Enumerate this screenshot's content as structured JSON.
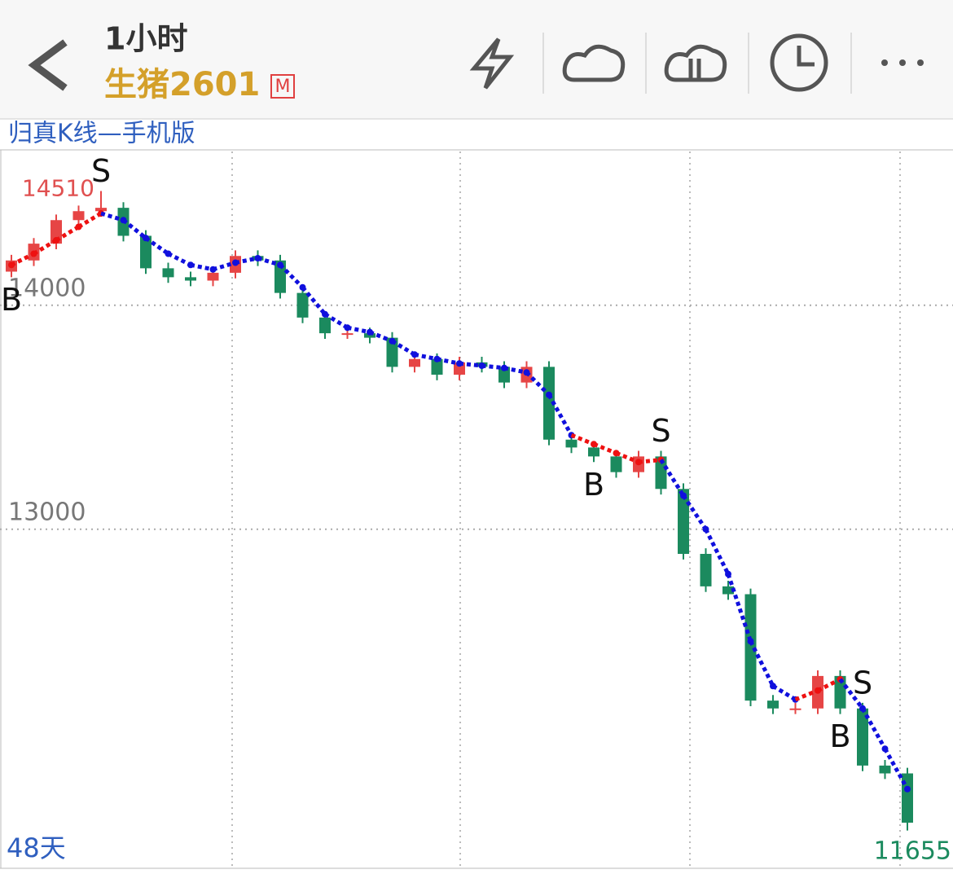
{
  "header": {
    "period": "1小时",
    "symbol": "生猪2601",
    "badge": "M"
  },
  "subheader": "归真K线—手机版",
  "footer_left": "48天",
  "chart_data": {
    "type": "candlestick",
    "open": [
      14150,
      14200,
      14275,
      14380,
      14420,
      14435,
      14310,
      14165,
      14125,
      14110,
      14145,
      14220,
      14200,
      14055,
      13945,
      13875,
      13875,
      13855,
      13725,
      13760,
      13690,
      13745,
      13725,
      13655,
      13725,
      13400,
      13365,
      13325,
      13255,
      13325,
      13180,
      12890,
      12745,
      12710,
      12235,
      12200,
      12200,
      12345,
      12200,
      11945,
      11910
    ],
    "high": [
      14225,
      14300,
      14405,
      14445,
      14510,
      14460,
      14335,
      14190,
      14150,
      14170,
      14245,
      14245,
      14225,
      14080,
      13970,
      13900,
      13900,
      13880,
      13785,
      13785,
      13770,
      13770,
      13750,
      13750,
      13750,
      13425,
      13390,
      13350,
      13350,
      13350,
      13205,
      12915,
      12770,
      12735,
      12260,
      12225,
      12370,
      12370,
      12225,
      11970,
      11935
    ],
    "low": [
      14125,
      14175,
      14250,
      14355,
      14395,
      14285,
      14140,
      14100,
      14085,
      14085,
      14120,
      14175,
      14030,
      13920,
      13850,
      13850,
      13830,
      13700,
      13700,
      13665,
      13665,
      13700,
      13630,
      13630,
      13375,
      13340,
      13300,
      13230,
      13230,
      13155,
      12865,
      12720,
      12685,
      12210,
      12175,
      12175,
      12175,
      12175,
      11920,
      11885,
      11655
    ],
    "close": [
      14200,
      14275,
      14380,
      14420,
      14435,
      14310,
      14165,
      14125,
      14110,
      14145,
      14220,
      14200,
      14055,
      13945,
      13875,
      13875,
      13855,
      13725,
      13760,
      13690,
      13745,
      13725,
      13655,
      13725,
      13400,
      13365,
      13325,
      13255,
      13325,
      13180,
      12890,
      12745,
      12710,
      12235,
      12200,
      12200,
      12345,
      12200,
      11945,
      11910,
      11690
    ],
    "trend": [
      14180,
      14230,
      14290,
      14350,
      14410,
      14380,
      14300,
      14230,
      14180,
      14160,
      14190,
      14210,
      14180,
      14080,
      13960,
      13900,
      13880,
      13840,
      13780,
      13760,
      13740,
      13730,
      13720,
      13700,
      13600,
      13420,
      13380,
      13340,
      13300,
      13310,
      13150,
      13000,
      12800,
      12500,
      12300,
      12240,
      12280,
      12330,
      12200,
      12020,
      11840
    ],
    "trend_colors": [
      "#ee1111",
      "#ee1111",
      "#ee1111",
      "#ee1111",
      "#ee1111",
      "#1010dd",
      "#1010dd",
      "#1010dd",
      "#1010dd",
      "#1010dd",
      "#1010dd",
      "#1010dd",
      "#1010dd",
      "#1010dd",
      "#1010dd",
      "#1010dd",
      "#1010dd",
      "#1010dd",
      "#1010dd",
      "#1010dd",
      "#1010dd",
      "#1010dd",
      "#1010dd",
      "#1010dd",
      "#1010dd",
      "#1010dd",
      "#ee1111",
      "#ee1111",
      "#ee1111",
      "#ee1111",
      "#1010dd",
      "#1010dd",
      "#1010dd",
      "#1010dd",
      "#1010dd",
      "#1010dd",
      "#ee1111",
      "#ee1111",
      "#1010dd",
      "#1010dd",
      "#1010dd"
    ],
    "signals": [
      "B",
      null,
      null,
      null,
      "S",
      null,
      null,
      null,
      null,
      null,
      null,
      null,
      null,
      null,
      null,
      null,
      null,
      null,
      null,
      null,
      null,
      null,
      null,
      null,
      null,
      null,
      "B",
      null,
      null,
      "S",
      null,
      null,
      null,
      null,
      null,
      null,
      null,
      "B",
      "S",
      null,
      null
    ],
    "up_color": "#e64545",
    "down_color": "#1b8a5e",
    "high_label": 14510,
    "low_label": 11655,
    "ylim": [
      11490,
      14690
    ],
    "yticks": [
      13000,
      14000
    ],
    "grid": true
  }
}
